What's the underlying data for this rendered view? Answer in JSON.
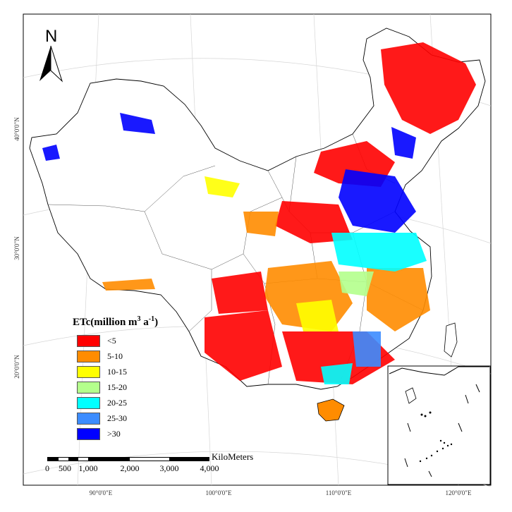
{
  "map": {
    "north_label": "N",
    "legend": {
      "title_main": "ETc(million m",
      "title_sup1": "3",
      "title_mid": " a",
      "title_sup2": "-1",
      "title_end": ")",
      "items": [
        {
          "label": "<5",
          "color": "#ff0000"
        },
        {
          "label": "5-10",
          "color": "#ff8c00"
        },
        {
          "label": "10-15",
          "color": "#ffff00"
        },
        {
          "label": "15-20",
          "color": "#b4ff8c"
        },
        {
          "label": "20-25",
          "color": "#00ffff"
        },
        {
          "label": "25-30",
          "color": "#3c8cff"
        },
        {
          "label": ">30",
          "color": "#0000ff"
        }
      ]
    },
    "scale_bar": {
      "unit": "KiloMeters",
      "ticks": [
        "0",
        "500",
        "1,000",
        "2,000",
        "3,000",
        "4,000"
      ]
    },
    "longitude_labels": [
      "90°0'0\"E",
      "100°0'0\"E",
      "110°0'0\"E",
      "120°0'0\"E"
    ],
    "latitude_labels": [
      "40°0'0\"N",
      "30°0'0\"N",
      "20°0'0\"N"
    ]
  }
}
